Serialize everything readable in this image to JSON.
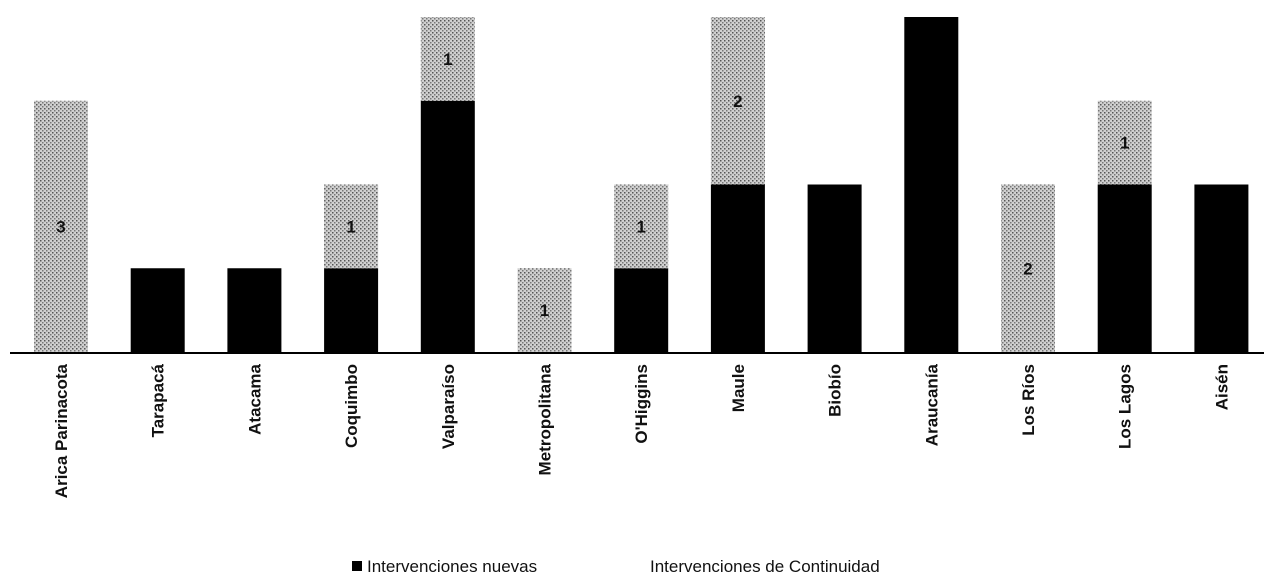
{
  "chart_data": {
    "type": "bar",
    "stacked": true,
    "categories": [
      "Arica Parinacota",
      "Tarapacá",
      "Atacama",
      "Coquimbo",
      "Valparaíso",
      "Metropolitana",
      "O'Higgins",
      "Maule",
      "Biobío",
      "Araucanía",
      "Los Ríos",
      "Los Lagos",
      "Aisén"
    ],
    "series": [
      {
        "name": "Intervenciones nuevas",
        "color": "#000000",
        "values": [
          0,
          1,
          1,
          1,
          3,
          0,
          1,
          2,
          2,
          4,
          0,
          2,
          2
        ]
      },
      {
        "name": "Intervenciones de Continuidad",
        "color": "#b4b4b4",
        "values": [
          3,
          0,
          0,
          1,
          1,
          1,
          1,
          2,
          0,
          0,
          2,
          1,
          0
        ]
      }
    ],
    "data_labels": {
      "Intervenciones de Continuidad": [
        "3",
        "",
        "",
        "1",
        "1",
        "1",
        "1",
        "2",
        "",
        "",
        "2",
        "1",
        ""
      ]
    },
    "ylim": [
      0,
      4
    ],
    "grid": false,
    "legend_position": "bottom"
  }
}
